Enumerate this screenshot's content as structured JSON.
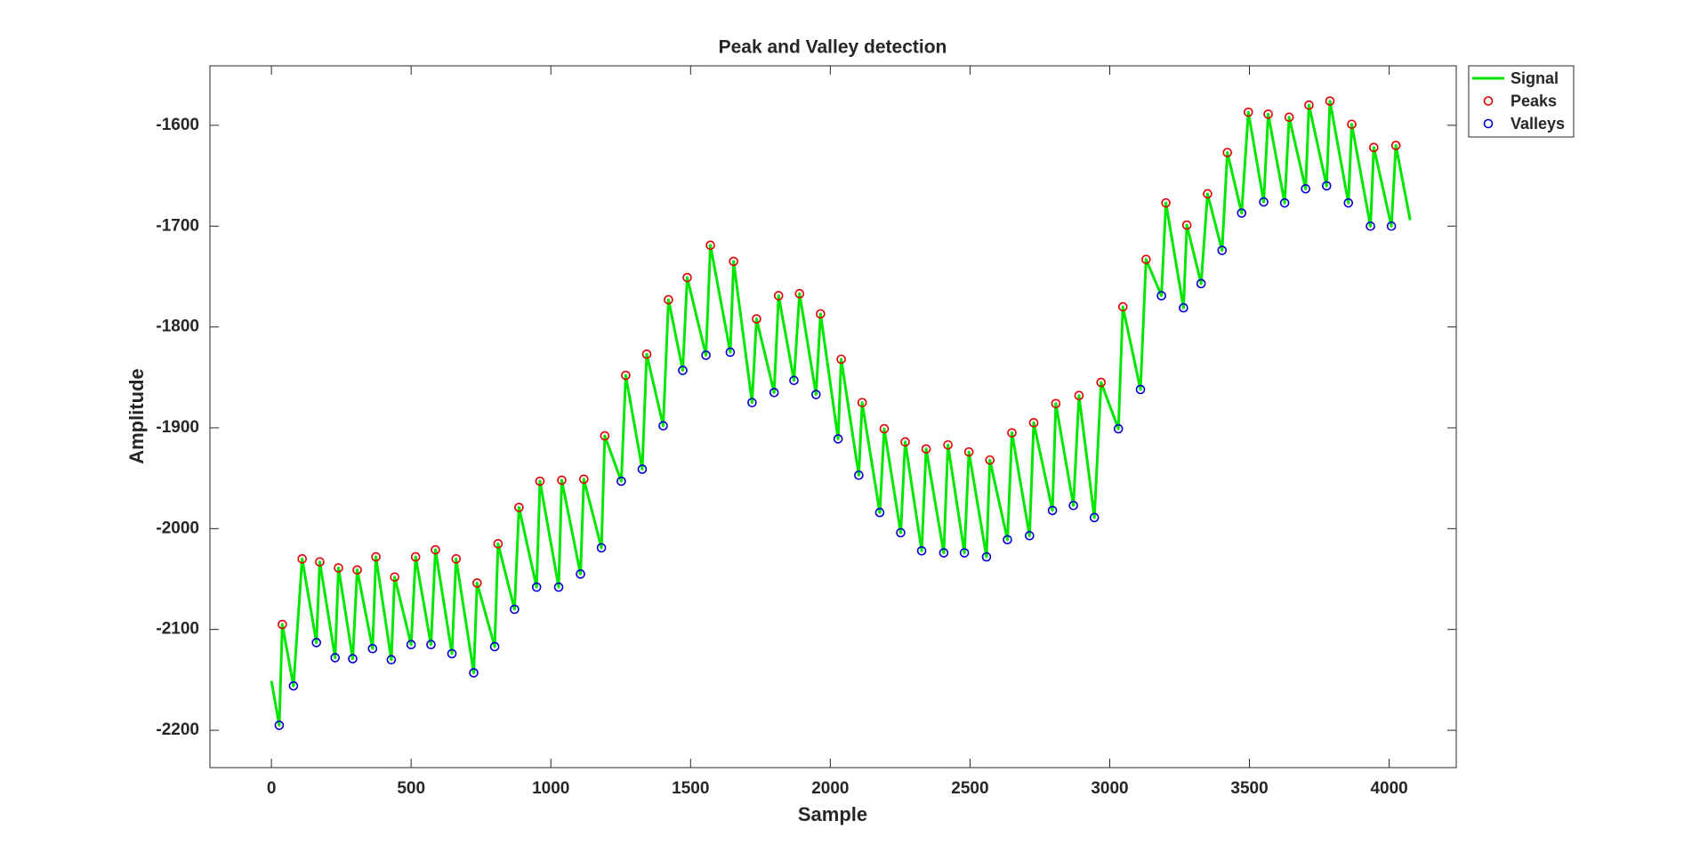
{
  "chart_data": {
    "type": "line",
    "title": "Peak and Valley detection",
    "x_label": "Sample",
    "y_label": "Amplitude",
    "xlim": [
      -220,
      4240
    ],
    "ylim": [
      -2237,
      -1541
    ],
    "xticks": [
      0,
      500,
      1000,
      1500,
      2000,
      2500,
      3000,
      3500,
      4000
    ],
    "yticks": [
      -2200,
      -2100,
      -2000,
      -1900,
      -1800,
      -1700,
      -1600
    ],
    "grid": false,
    "legend": "outside-top-right",
    "series": [
      {
        "name": "Signal",
        "color": "#00e600",
        "style": "line",
        "x": [
          0,
          28,
          39,
          79,
          110,
          161,
          173,
          228,
          240,
          291,
          307,
          362,
          374,
          429,
          441,
          500,
          516,
          571,
          587,
          646,
          661,
          724,
          736,
          799,
          811,
          870,
          886,
          949,
          961,
          1028,
          1039,
          1106,
          1118,
          1181,
          1193,
          1252,
          1268,
          1327,
          1343,
          1402,
          1421,
          1472,
          1488,
          1555,
          1571,
          1642,
          1654,
          1720,
          1736,
          1799,
          1815,
          1870,
          1890,
          1949,
          1965,
          2028,
          2039,
          2102,
          2114,
          2177,
          2193,
          2252,
          2268,
          2327,
          2343,
          2406,
          2421,
          2480,
          2496,
          2559,
          2571,
          2634,
          2650,
          2713,
          2728,
          2795,
          2807,
          2870,
          2890,
          2945,
          2969,
          3031,
          3047,
          3110,
          3130,
          3185,
          3201,
          3264,
          3276,
          3327,
          3350,
          3402,
          3421,
          3472,
          3496,
          3551,
          3567,
          3626,
          3642,
          3701,
          3713,
          3776,
          3788,
          3854,
          3866,
          3933,
          3945,
          4008,
          4024,
          4075
        ],
        "values": [
          -2151,
          -2195,
          -2095,
          -2156,
          -2030,
          -2113,
          -2033,
          -2128,
          -2039,
          -2129,
          -2041,
          -2119,
          -2028,
          -2130,
          -2048,
          -2115,
          -2028,
          -2115,
          -2021,
          -2124,
          -2030,
          -2143,
          -2054,
          -2117,
          -2015,
          -2080,
          -1979,
          -2058,
          -1953,
          -2058,
          -1952,
          -2045,
          -1951,
          -2019,
          -1908,
          -1953,
          -1848,
          -1941,
          -1827,
          -1898,
          -1773,
          -1843,
          -1751,
          -1828,
          -1719,
          -1825,
          -1735,
          -1875,
          -1792,
          -1865,
          -1769,
          -1853,
          -1767,
          -1867,
          -1787,
          -1911,
          -1832,
          -1947,
          -1875,
          -1984,
          -1901,
          -2004,
          -1914,
          -2022,
          -1921,
          -2024,
          -1917,
          -2024,
          -1924,
          -2028,
          -1932,
          -2011,
          -1905,
          -2007,
          -1895,
          -1982,
          -1876,
          -1977,
          -1868,
          -1989,
          -1855,
          -1901,
          -1780,
          -1862,
          -1733,
          -1769,
          -1677,
          -1781,
          -1699,
          -1757,
          -1668,
          -1724,
          -1627,
          -1687,
          -1587,
          -1676,
          -1589,
          -1677,
          -1592,
          -1663,
          -1580,
          -1660,
          -1576,
          -1677,
          -1599,
          -1700,
          -1622,
          -1700,
          -1620,
          -1694
        ]
      },
      {
        "name": "Peaks",
        "color": "#e00000",
        "style": "markers",
        "x": [
          39,
          110,
          173,
          240,
          307,
          374,
          441,
          516,
          587,
          661,
          736,
          811,
          886,
          961,
          1039,
          1118,
          1193,
          1268,
          1343,
          1421,
          1488,
          1571,
          1654,
          1736,
          1815,
          1890,
          1965,
          2039,
          2114,
          2193,
          2268,
          2343,
          2421,
          2496,
          2571,
          2650,
          2728,
          2807,
          2890,
          2969,
          3047,
          3130,
          3201,
          3276,
          3350,
          3421,
          3496,
          3567,
          3642,
          3713,
          3788,
          3866,
          3945,
          4024
        ],
        "values": [
          -2095,
          -2030,
          -2033,
          -2039,
          -2041,
          -2028,
          -2048,
          -2028,
          -2021,
          -2030,
          -2054,
          -2015,
          -1979,
          -1953,
          -1952,
          -1951,
          -1908,
          -1848,
          -1827,
          -1773,
          -1751,
          -1719,
          -1735,
          -1792,
          -1769,
          -1767,
          -1787,
          -1832,
          -1875,
          -1901,
          -1914,
          -1921,
          -1917,
          -1924,
          -1932,
          -1905,
          -1895,
          -1876,
          -1868,
          -1855,
          -1780,
          -1733,
          -1677,
          -1699,
          -1668,
          -1627,
          -1587,
          -1589,
          -1592,
          -1580,
          -1576,
          -1599,
          -1622,
          -1620
        ]
      },
      {
        "name": "Valleys",
        "color": "#0000d0",
        "style": "markers",
        "x": [
          28,
          79,
          161,
          228,
          291,
          362,
          429,
          500,
          571,
          646,
          724,
          799,
          870,
          949,
          1028,
          1106,
          1181,
          1252,
          1327,
          1402,
          1472,
          1555,
          1642,
          1720,
          1799,
          1870,
          1949,
          2028,
          2102,
          2177,
          2252,
          2327,
          2406,
          2480,
          2559,
          2634,
          2713,
          2795,
          2870,
          2945,
          3031,
          3110,
          3185,
          3264,
          3327,
          3402,
          3472,
          3551,
          3626,
          3701,
          3776,
          3854,
          3933,
          4008
        ],
        "values": [
          -2195,
          -2156,
          -2113,
          -2128,
          -2129,
          -2119,
          -2130,
          -2115,
          -2115,
          -2124,
          -2143,
          -2117,
          -2080,
          -2058,
          -2058,
          -2045,
          -2019,
          -1953,
          -1941,
          -1898,
          -1843,
          -1828,
          -1825,
          -1875,
          -1865,
          -1853,
          -1867,
          -1911,
          -1947,
          -1984,
          -2004,
          -2022,
          -2024,
          -2024,
          -2028,
          -2011,
          -2007,
          -1982,
          -1977,
          -1989,
          -1901,
          -1862,
          -1769,
          -1781,
          -1757,
          -1724,
          -1687,
          -1676,
          -1677,
          -1663,
          -1660,
          -1677,
          -1700,
          -1700
        ]
      }
    ]
  }
}
